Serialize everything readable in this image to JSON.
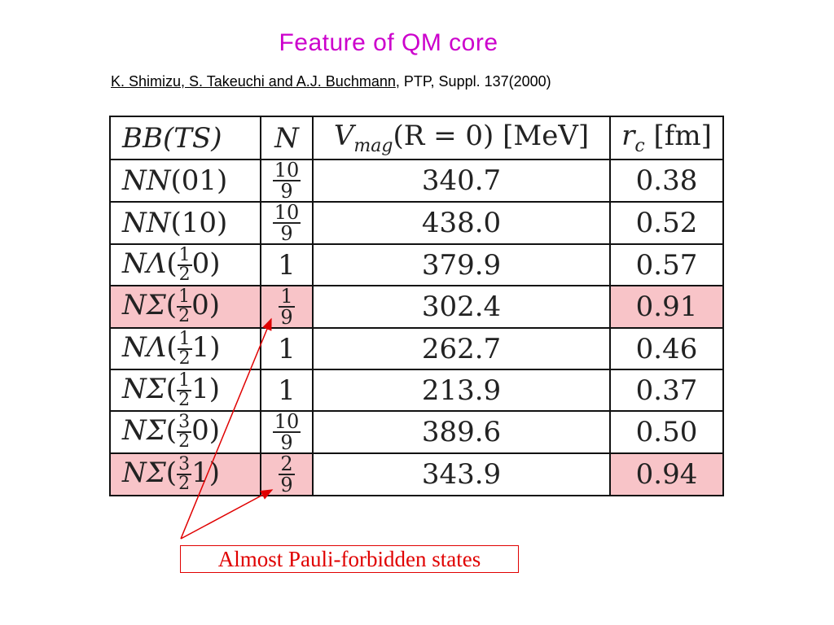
{
  "title": "Feature of QM core",
  "citation": {
    "authors": "K. Shimizu, S. Takeuchi and A.J. Buchmann",
    "rest": ", PTP, Suppl. 137(2000)"
  },
  "table": {
    "headers": {
      "bb_base": "BB",
      "bb_args": "(TS)",
      "n": "N",
      "vmag_v": "V",
      "vmag_sub": "mag",
      "vmag_rest": "(R = 0)  [MeV]",
      "rc_r": "r",
      "rc_sub": "c",
      "rc_unit": "[fm]"
    },
    "rows": [
      {
        "bb_base": "NN",
        "t_num": "",
        "t_den": "",
        "t_whole": "0",
        "s": "1",
        "n_num": "10",
        "n_den": "9",
        "n_whole": "",
        "v": "340.7",
        "rc": "0.38",
        "highlight": false
      },
      {
        "bb_base": "NN",
        "t_num": "",
        "t_den": "",
        "t_whole": "1",
        "s": "0",
        "n_num": "10",
        "n_den": "9",
        "n_whole": "",
        "v": "438.0",
        "rc": "0.52",
        "highlight": false
      },
      {
        "bb_base": "NΛ",
        "t_num": "1",
        "t_den": "2",
        "t_whole": "",
        "s": "0",
        "n_num": "",
        "n_den": "",
        "n_whole": "1",
        "v": "379.9",
        "rc": "0.57",
        "highlight": false
      },
      {
        "bb_base": "NΣ",
        "t_num": "1",
        "t_den": "2",
        "t_whole": "",
        "s": "0",
        "n_num": "1",
        "n_den": "9",
        "n_whole": "",
        "v": "302.4",
        "rc": "0.91",
        "highlight": true
      },
      {
        "bb_base": "NΛ",
        "t_num": "1",
        "t_den": "2",
        "t_whole": "",
        "s": "1",
        "n_num": "",
        "n_den": "",
        "n_whole": "1",
        "v": "262.7",
        "rc": "0.46",
        "highlight": false
      },
      {
        "bb_base": "NΣ",
        "t_num": "1",
        "t_den": "2",
        "t_whole": "",
        "s": "1",
        "n_num": "",
        "n_den": "",
        "n_whole": "1",
        "v": "213.9",
        "rc": "0.37",
        "highlight": false
      },
      {
        "bb_base": "NΣ",
        "t_num": "3",
        "t_den": "2",
        "t_whole": "",
        "s": "0",
        "n_num": "10",
        "n_den": "9",
        "n_whole": "",
        "v": "389.6",
        "rc": "0.50",
        "highlight": false
      },
      {
        "bb_base": "NΣ",
        "t_num": "3",
        "t_den": "2",
        "t_whole": "",
        "s": "1",
        "n_num": "2",
        "n_den": "9",
        "n_whole": "",
        "v": "343.9",
        "rc": "0.94",
        "highlight": true
      }
    ]
  },
  "annotation": {
    "text": "Almost Pauli-forbidden states",
    "color": "#e00000"
  },
  "colors": {
    "title": "#cc00cc",
    "highlight": "#f8c4c8"
  }
}
